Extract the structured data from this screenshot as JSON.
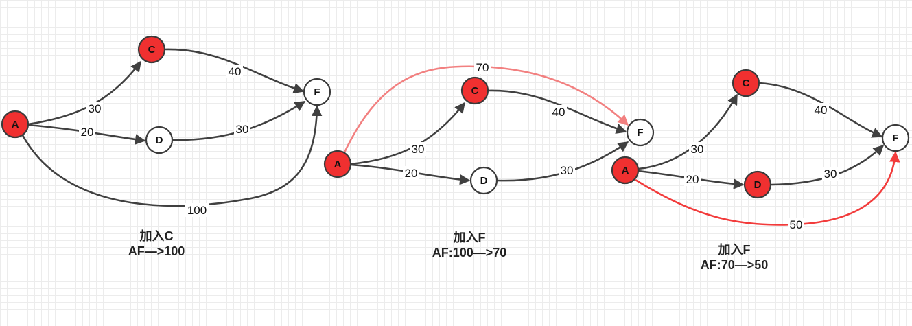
{
  "colors": {
    "visited_node": "#f03030",
    "unvisited_node": "#ffffff",
    "edge": "#404040",
    "edge_updated_light": "#f28080",
    "edge_updated": "#f23b3b"
  },
  "panels": [
    {
      "nodes": [
        {
          "id": "A",
          "label": "A",
          "visited": true
        },
        {
          "id": "C",
          "label": "C",
          "visited": true
        },
        {
          "id": "D",
          "label": "D",
          "visited": false
        },
        {
          "id": "F",
          "label": "F",
          "visited": false
        }
      ],
      "edges": [
        {
          "from": "A",
          "to": "C",
          "weight": "30",
          "style": "normal"
        },
        {
          "from": "C",
          "to": "F",
          "weight": "40",
          "style": "normal"
        },
        {
          "from": "A",
          "to": "D",
          "weight": "20",
          "style": "normal"
        },
        {
          "from": "D",
          "to": "F",
          "weight": "30",
          "style": "normal"
        },
        {
          "from": "A",
          "to": "F",
          "weight": "100",
          "style": "normal"
        }
      ],
      "caption": {
        "line1": "加入C",
        "line2": "AF—>100"
      }
    },
    {
      "nodes": [
        {
          "id": "A",
          "label": "A",
          "visited": true
        },
        {
          "id": "C",
          "label": "C",
          "visited": true
        },
        {
          "id": "D",
          "label": "D",
          "visited": false
        },
        {
          "id": "F",
          "label": "F",
          "visited": false
        }
      ],
      "edges": [
        {
          "from": "A",
          "to": "F",
          "weight": "70",
          "style": "highlight-light"
        },
        {
          "from": "A",
          "to": "C",
          "weight": "30",
          "style": "normal"
        },
        {
          "from": "C",
          "to": "F",
          "weight": "40",
          "style": "normal"
        },
        {
          "from": "A",
          "to": "D",
          "weight": "20",
          "style": "normal"
        },
        {
          "from": "D",
          "to": "F",
          "weight": "30",
          "style": "normal"
        }
      ],
      "caption": {
        "line1": "加入F",
        "line2": "AF:100—>70"
      }
    },
    {
      "nodes": [
        {
          "id": "A",
          "label": "A",
          "visited": true
        },
        {
          "id": "C",
          "label": "C",
          "visited": true
        },
        {
          "id": "D",
          "label": "D",
          "visited": true
        },
        {
          "id": "F",
          "label": "F",
          "visited": false
        }
      ],
      "edges": [
        {
          "from": "A",
          "to": "C",
          "weight": "30",
          "style": "normal"
        },
        {
          "from": "C",
          "to": "F",
          "weight": "40",
          "style": "normal"
        },
        {
          "from": "A",
          "to": "D",
          "weight": "20",
          "style": "normal"
        },
        {
          "from": "D",
          "to": "F",
          "weight": "30",
          "style": "normal"
        },
        {
          "from": "A",
          "to": "F",
          "weight": "50",
          "style": "highlight"
        }
      ],
      "caption": {
        "line1": "加入F",
        "line2": "AF:70—>50"
      }
    }
  ]
}
